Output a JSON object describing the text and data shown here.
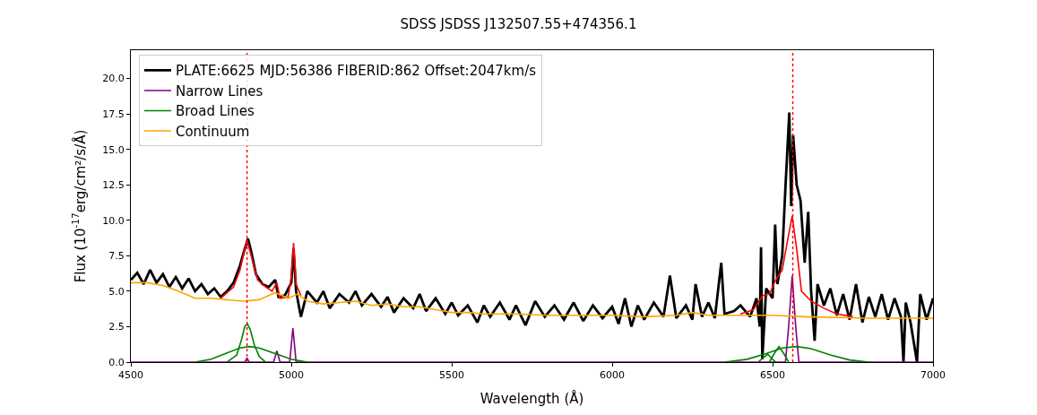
{
  "chart_data": {
    "type": "line",
    "title": "SDSS JSDSS J132507.55+474356.1",
    "xlabel": "Wavelength (Å)",
    "ylabel": "Flux (10$^{-17}$erg/cm²/s/Å)",
    "xlim": [
      4500,
      7000
    ],
    "ylim": [
      0,
      22
    ],
    "xticks": [
      4500,
      5000,
      5500,
      6000,
      6500,
      7000
    ],
    "yticks": [
      {
        "value": 0,
        "label": "0.0"
      },
      {
        "value": 2.5,
        "label": "2.5"
      },
      {
        "value": 5,
        "label": "5.0"
      },
      {
        "value": 7.5,
        "label": "7.5"
      },
      {
        "value": 10,
        "label": "10.0"
      },
      {
        "value": 12.5,
        "label": "12.5"
      },
      {
        "value": 15,
        "label": "15.0"
      },
      {
        "value": 17.5,
        "label": "17.5"
      },
      {
        "value": 20,
        "label": "20.0"
      }
    ],
    "legend": "top left",
    "marker": "none",
    "line_style": "solid",
    "series": [
      {
        "name": "PLATE:6625 MJD:56386 FIBERID:862 Offset:2047km/s",
        "color": "#000000",
        "x": [
          4500,
          4520,
          4540,
          4560,
          4580,
          4600,
          4620,
          4640,
          4660,
          4680,
          4700,
          4720,
          4740,
          4760,
          4780,
          4800,
          4820,
          4840,
          4855,
          4865,
          4875,
          4890,
          4910,
          4930,
          4950,
          4960,
          4980,
          5000,
          5007,
          5015,
          5030,
          5050,
          5080,
          5100,
          5120,
          5150,
          5180,
          5200,
          5220,
          5250,
          5280,
          5300,
          5320,
          5350,
          5380,
          5400,
          5420,
          5450,
          5480,
          5500,
          5520,
          5550,
          5580,
          5600,
          5620,
          5650,
          5680,
          5700,
          5730,
          5760,
          5790,
          5820,
          5850,
          5880,
          5910,
          5940,
          5970,
          6000,
          6020,
          6040,
          6060,
          6080,
          6100,
          6130,
          6160,
          6180,
          6200,
          6230,
          6250,
          6260,
          6280,
          6300,
          6320,
          6340,
          6350,
          6380,
          6400,
          6430,
          6450,
          6460,
          6464,
          6468,
          6480,
          6500,
          6508,
          6515,
          6530,
          6540,
          6552,
          6558,
          6564,
          6575,
          6587,
          6600,
          6611,
          6620,
          6631,
          6640,
          6660,
          6680,
          6700,
          6720,
          6740,
          6760,
          6780,
          6800,
          6820,
          6840,
          6860,
          6880,
          6900,
          6908,
          6915,
          6930,
          6950,
          6960,
          6980,
          7000
        ],
        "values": [
          5.8,
          6.3,
          5.5,
          6.5,
          5.6,
          6.2,
          5.3,
          6.0,
          5.2,
          5.9,
          5.0,
          5.5,
          4.8,
          5.2,
          4.6,
          5.0,
          5.6,
          6.8,
          8.0,
          8.7,
          7.8,
          6.2,
          5.5,
          5.3,
          5.8,
          4.6,
          4.7,
          5.6,
          8.0,
          5.0,
          3.2,
          5.0,
          4.2,
          5.0,
          3.8,
          4.8,
          4.2,
          5.0,
          4.0,
          4.8,
          3.9,
          4.6,
          3.5,
          4.5,
          3.8,
          4.8,
          3.6,
          4.5,
          3.4,
          4.2,
          3.3,
          4.0,
          2.8,
          4.0,
          3.2,
          4.2,
          3.0,
          4.0,
          2.6,
          4.3,
          3.2,
          4.0,
          3.0,
          4.2,
          2.9,
          4.0,
          3.1,
          3.9,
          2.7,
          4.5,
          2.5,
          4.0,
          3.0,
          4.2,
          3.2,
          6.1,
          3.1,
          4.0,
          3.0,
          5.5,
          3.2,
          4.2,
          3.1,
          7.0,
          3.4,
          3.6,
          4.0,
          3.2,
          4.5,
          2.5,
          8.1,
          0.2,
          5.2,
          4.5,
          9.7,
          5.5,
          7.5,
          12.3,
          17.6,
          11.0,
          16.0,
          12.5,
          11.4,
          7.0,
          10.6,
          5.0,
          1.5,
          5.5,
          4.0,
          5.2,
          3.3,
          4.8,
          3.0,
          5.5,
          2.8,
          4.6,
          3.2,
          4.8,
          3.0,
          4.5,
          3.2,
          0.0,
          4.2,
          2.8,
          0.0,
          4.8,
          3.0,
          4.5
        ]
      },
      {
        "color": "#ff0000",
        "x": [
          4780,
          4820,
          4840,
          4855,
          4862,
          4875,
          4895,
          4920,
          4940,
          4955,
          4965,
          4990,
          5000,
          5007,
          5015,
          5030
        ],
        "values": [
          4.5,
          5.3,
          6.5,
          8.0,
          8.6,
          7.5,
          5.8,
          5.3,
          5.0,
          5.6,
          4.5,
          4.6,
          6.0,
          8.4,
          5.5,
          4.7
        ]
      },
      {
        "color": "#ff0000",
        "x": [
          6400,
          6440,
          6470,
          6490,
          6510,
          6530,
          6550,
          6561,
          6575,
          6590,
          6620,
          6660,
          6700,
          6750
        ],
        "values": [
          3.4,
          3.7,
          4.7,
          4.8,
          5.8,
          6.5,
          9.0,
          10.3,
          8.0,
          5.0,
          4.3,
          3.8,
          3.4,
          3.2
        ]
      },
      {
        "name": "Narrow Lines",
        "color": "#800080",
        "x": [
          4500,
          4855,
          4862,
          4869,
          4945,
          4955,
          4965,
          4995,
          5005,
          5015,
          6540,
          6550,
          6561,
          6572,
          6582,
          7000
        ],
        "values": [
          0,
          0,
          0.3,
          0,
          0,
          0.8,
          0,
          0,
          2.4,
          0,
          0,
          2.5,
          6.1,
          2.5,
          0,
          0
        ]
      },
      {
        "name": "Broad Lines",
        "color": "#008000",
        "x": [
          4800,
          4830,
          4845,
          4855,
          4863,
          4872,
          4885,
          4900,
          4920
        ],
        "values": [
          0,
          0.5,
          1.6,
          2.5,
          2.7,
          2.3,
          1.2,
          0.4,
          0
        ]
      },
      {
        "color": "#008000",
        "x": [
          4700,
          4750,
          4800,
          4840,
          4870,
          4900,
          4950,
          5000,
          5050
        ],
        "values": [
          0,
          0.2,
          0.65,
          1.0,
          1.1,
          1.0,
          0.6,
          0.2,
          0
        ]
      },
      {
        "color": "#008000",
        "x": [
          6455,
          6470,
          6485,
          6500,
          6510
        ],
        "values": [
          0,
          0.3,
          0.55,
          0.2,
          0
        ]
      },
      {
        "color": "#008000",
        "x": [
          6490,
          6505,
          6520,
          6535,
          6550
        ],
        "values": [
          0,
          0.6,
          1.1,
          0.6,
          0
        ]
      },
      {
        "color": "#008000",
        "x": [
          6350,
          6420,
          6480,
          6530,
          6575,
          6620,
          6680,
          6740,
          6800
        ],
        "values": [
          0,
          0.2,
          0.6,
          1.0,
          1.1,
          0.95,
          0.5,
          0.15,
          0
        ]
      },
      {
        "name": "Continuum",
        "color": "#ffa500",
        "x": [
          4500,
          4550,
          4600,
          4650,
          4700,
          4750,
          4800,
          4850,
          4900,
          4950,
          4990,
          5020,
          5050,
          5100,
          5150,
          5200,
          5250,
          5300,
          5350,
          5400,
          5450,
          5500,
          5550,
          5600,
          5700,
          5800,
          5900,
          6000,
          6100,
          6200,
          6250,
          6300,
          6400,
          6500,
          6600,
          6800,
          7000
        ],
        "values": [
          5.6,
          5.6,
          5.4,
          5.0,
          4.5,
          4.5,
          4.4,
          4.3,
          4.4,
          4.9,
          4.5,
          4.8,
          4.3,
          4.1,
          4.2,
          4.3,
          4.0,
          4.1,
          3.9,
          3.9,
          3.7,
          3.5,
          3.5,
          3.4,
          3.4,
          3.3,
          3.3,
          3.3,
          3.2,
          3.3,
          3.5,
          3.3,
          3.3,
          3.3,
          3.2,
          3.1,
          3.1
        ]
      }
    ],
    "ref_lines": [
      {
        "axis": "x",
        "value": 4862,
        "color": "#ff0000",
        "line_style": "dotted"
      },
      {
        "axis": "x",
        "value": 6563,
        "color": "#ff0000",
        "line_style": "dotted"
      }
    ]
  }
}
